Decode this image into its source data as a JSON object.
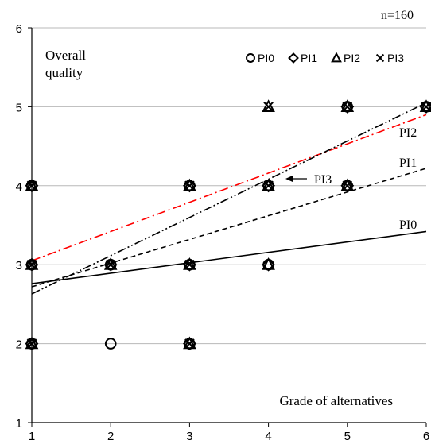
{
  "chart_data": {
    "type": "scatter",
    "annotation_n": "n=160",
    "ylabel": "Overall quality",
    "xlabel": "Grade of alternatives",
    "xlim": [
      1,
      6
    ],
    "ylim": [
      1,
      6
    ],
    "x_ticks": [
      "1",
      "2",
      "3",
      "4",
      "5",
      "6"
    ],
    "y_ticks": [
      "1",
      "2",
      "3",
      "4",
      "5",
      "6"
    ],
    "grid": "horizontal",
    "legend_position": "top-right",
    "series": [
      {
        "name": "PI0",
        "marker": "circle",
        "points": [
          [
            1,
            2
          ],
          [
            1,
            3
          ],
          [
            1,
            4
          ],
          [
            2,
            2
          ],
          [
            2,
            3
          ],
          [
            3,
            2
          ],
          [
            3,
            3
          ],
          [
            3,
            4
          ],
          [
            4,
            3
          ],
          [
            4,
            4
          ],
          [
            5,
            4
          ],
          [
            5,
            5
          ],
          [
            6,
            5
          ]
        ],
        "trend": {
          "label": "PI0",
          "y_at_1": 2.76,
          "y_at_6": 3.42,
          "style": "solid",
          "color": "#000000"
        }
      },
      {
        "name": "PI1",
        "marker": "diamond",
        "points": [
          [
            1,
            2
          ],
          [
            1,
            3
          ],
          [
            1,
            4
          ],
          [
            2,
            3
          ],
          [
            3,
            2
          ],
          [
            3,
            3
          ],
          [
            3,
            4
          ],
          [
            4,
            3
          ],
          [
            4,
            4
          ],
          [
            5,
            4
          ],
          [
            5,
            5
          ],
          [
            6,
            5
          ]
        ],
        "trend": {
          "label": "PI1",
          "y_at_1": 2.72,
          "y_at_6": 4.22,
          "style": "dashed",
          "color": "#000000"
        }
      },
      {
        "name": "PI2",
        "marker": "triangle",
        "points": [
          [
            1,
            2
          ],
          [
            1,
            3
          ],
          [
            1,
            4
          ],
          [
            2,
            3
          ],
          [
            3,
            2
          ],
          [
            3,
            3
          ],
          [
            3,
            4
          ],
          [
            4,
            3
          ],
          [
            4,
            4
          ],
          [
            4,
            5
          ],
          [
            5,
            4
          ],
          [
            5,
            5
          ],
          [
            6,
            5
          ]
        ],
        "trend": {
          "label": "PI2",
          "y_at_1": 3.05,
          "y_at_6": 4.9,
          "style": "dash-dot",
          "color": "#ff0000"
        }
      },
      {
        "name": "PI3",
        "marker": "cross",
        "points": [
          [
            1,
            2
          ],
          [
            1,
            3
          ],
          [
            1,
            4
          ],
          [
            2,
            3
          ],
          [
            3,
            2
          ],
          [
            3,
            3
          ],
          [
            3,
            4
          ],
          [
            4,
            4
          ],
          [
            4,
            5
          ],
          [
            5,
            4
          ],
          [
            5,
            5
          ],
          [
            6,
            5
          ]
        ],
        "trend": {
          "label": "PI3",
          "y_at_1": 2.63,
          "y_at_6": 5.05,
          "style": "dash-dot-dot",
          "color": "#000000"
        }
      }
    ]
  }
}
